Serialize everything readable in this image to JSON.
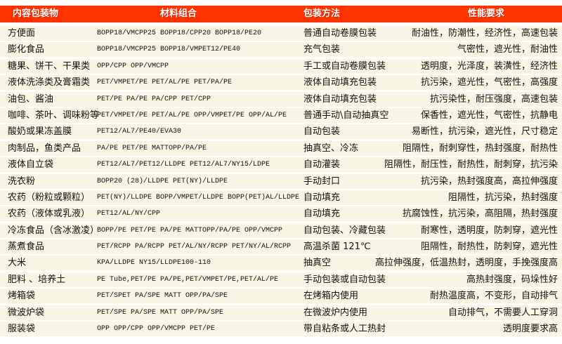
{
  "table": {
    "header_color": "#ff3300",
    "row_color": "#f8f5e5",
    "headers": [
      "内容包装物",
      "材料组合",
      "包装方法",
      "性能要求"
    ],
    "rows": [
      [
        "方便面",
        "BOPP18/VMCPP25  BOPP18/CPP20  BOPP18/PE20",
        "普通自动卷膜包装",
        "耐油性，防潮性，经济性，高速包装"
      ],
      [
        "膨化食品",
        "BOPP18/VMCPP25  BOPP18/VMPET12/PE40",
        "充气包装",
        "气密性，遮光性，耐油性"
      ],
      [
        "糖果、饼干、干果类",
        "OPP/CPP OPP/VMCPP",
        "手工或自动卷膜包装",
        "透明度，光泽度，装潢性，经济性"
      ],
      [
        "液体洗涤类及膏霜类",
        "PET/VMPET/PE PET/AL/PE  PET/PA/PE",
        "液体自动填充包装",
        "抗污染，遮光性，气密性，高强度"
      ],
      [
        "油包、酱油",
        "PET/PE  PA/PE PA/CPP PET/CPP",
        "液体自动填充包装",
        "抗污染性，耐压强度，高速包装"
      ],
      [
        "咖啡、茶叶、调味粉等",
        "PET/VMPET/PE PET/AL/PE OPP/VMPET/PE OPP/AL/PE",
        "普通手动\\自动抽真空",
        "保香性，遮光性，气密性，抗静电"
      ],
      [
        "酸奶或果冻盖膜",
        "PET12/AL7/PE40/EVA30",
        "自动包装",
        "易断性，抗污染，遮光性，尺寸稳定"
      ],
      [
        "肉制品，鱼类产品",
        "PA/PE PET/PE MATTOPP/PA/PE",
        "抽真空、冷冻",
        "阻隔性，耐刺穿性，热封强度，耐热性"
      ],
      [
        "液体自立袋",
        "PET12/AL7/PET12/LLDPE PET12/AL7/NY15/LDPE",
        "自动灌装",
        "阻隔性，耐压性，耐热性，耐刺穿，抗污染"
      ],
      [
        "洗衣粉",
        "BOPP20 (28)/LLDPE PET(NY)/LLDPE",
        "手动封口",
        "抗污染，热封强度高，高拉伸强度"
      ],
      [
        "农药（粉粒或颗粒）",
        "PET(NY)/LLDPE BOPP/VMPET/LLDPE BOPP(PET)AL/LLDPE",
        "自动填充",
        "阻隔性，抗污染，热封强度"
      ],
      [
        "农药（液体或乳液）",
        "PET12/AL/NY/CPP",
        "自动填充",
        "抗腐蚀性，抗污染，高阻隔，热封强度"
      ],
      [
        "冷冻食品（含冰激凌）",
        "BOPP/PE PET/PE PA/PE MATTOPP/PA/PE OPP/VMCPP",
        "自动包装、冷藏包装",
        "耐寒性，透明度，防刺穿，遮光性"
      ],
      [
        "蒸煮食品",
        "PET/RCPP PA/RCPP PET/AL/NY/RCPP PET/NY/AL/RCPP",
        "高温杀菌 121℃",
        "阻隔性，耐热性，防刺穿，遮光性"
      ],
      [
        "大米",
        "KPA/LLDPE NY15/LLDPE100-110",
        "抽真空",
        "高拉伸强度，低温热封，透明度，手挽强度高"
      ],
      [
        "肥料 、培养土",
        "PE Tube,PET/PE  PA/PE,PET/VMPET/PE,PET/AL/PE",
        "手动包装或自动包装",
        "高热封强度，码垛性好"
      ],
      [
        "烤箱袋",
        "PET/SPET PA/SPE MATT OPP/PA/SPE",
        "在烤箱内使用",
        "耐热温度高，不变形，自动排气"
      ],
      [
        "微波炉袋",
        "PET/SPE PA/SPE MATT OPP/PA/SPE",
        "在微波炉内使用",
        "自动排气，不需要人工穿洞"
      ],
      [
        "服装袋",
        "OPP  OPP/CPP OPP/VMCPP PET/PE",
        "带自粘条或人工热封",
        "透明度要求高"
      ]
    ]
  }
}
